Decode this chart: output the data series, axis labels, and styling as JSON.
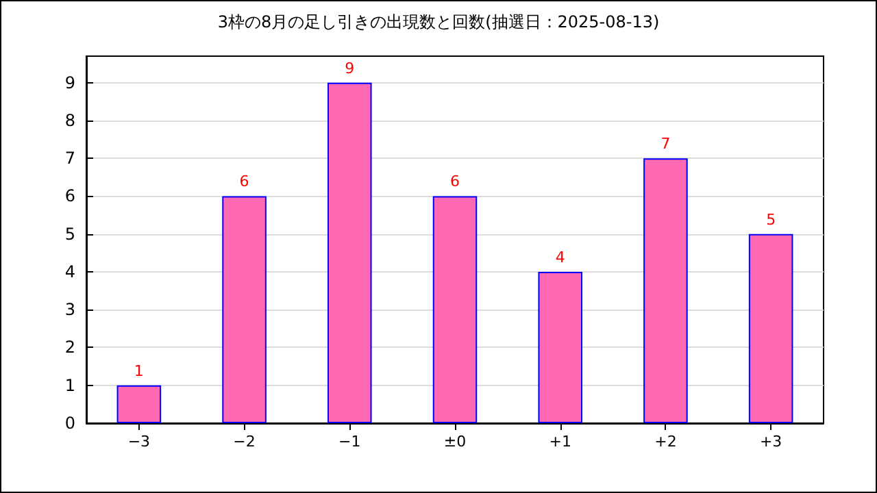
{
  "chart_data": {
    "type": "bar",
    "title": "3枠の8月の足し引きの出現数と回数(抽選日：2025-08-13)",
    "categories": [
      "−3",
      "−2",
      "−1",
      "±0",
      "+1",
      "+2",
      "+3"
    ],
    "values": [
      1,
      6,
      9,
      6,
      4,
      7,
      5
    ],
    "color": "#ff69b4",
    "ylim": [
      0,
      9.7
    ],
    "yticks": [
      0,
      1,
      2,
      3,
      4,
      5,
      6,
      7,
      8,
      9
    ],
    "grid": "y",
    "data_labels": true
  }
}
